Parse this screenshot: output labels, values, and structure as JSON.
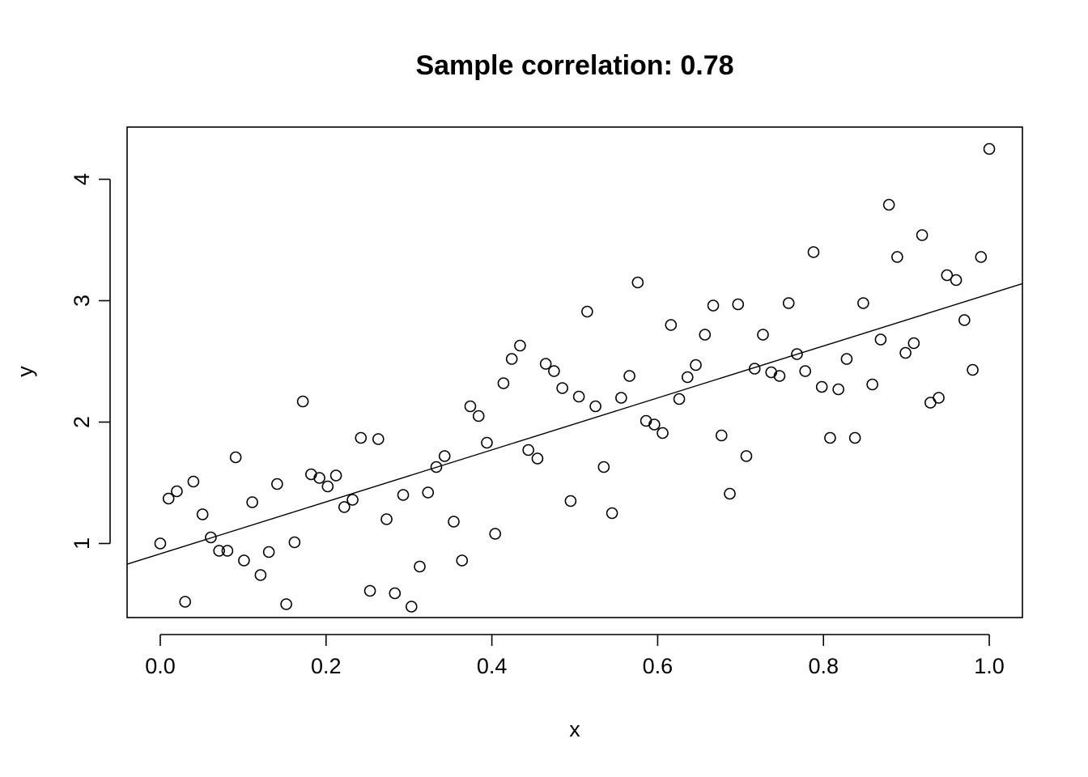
{
  "chart_data": {
    "type": "scatter",
    "title": "Sample correlation: 0.78",
    "xlabel": "x",
    "ylabel": "y",
    "xlim": [
      -0.04,
      1.04
    ],
    "ylim": [
      0.39,
      4.43
    ],
    "xticks": [
      0,
      0.2,
      0.4,
      0.6,
      0.8,
      1.0
    ],
    "xtick_labels": [
      "0.0",
      "0.2",
      "0.4",
      "0.6",
      "0.8",
      "1.0"
    ],
    "yticks": [
      1,
      2,
      3,
      4
    ],
    "ytick_labels": [
      "1",
      "2",
      "3",
      "4"
    ],
    "grid": false,
    "legend": "none",
    "marker": "open-circle",
    "fit_line": {
      "intercept": 0.915,
      "slope": 2.14
    },
    "points": [
      [
        0.0,
        1.0
      ],
      [
        0.01,
        1.37
      ],
      [
        0.02,
        1.43
      ],
      [
        0.03,
        0.52
      ],
      [
        0.04,
        1.51
      ],
      [
        0.051,
        1.24
      ],
      [
        0.061,
        1.05
      ],
      [
        0.071,
        0.94
      ],
      [
        0.081,
        0.94
      ],
      [
        0.091,
        1.71
      ],
      [
        0.101,
        0.86
      ],
      [
        0.111,
        1.34
      ],
      [
        0.121,
        0.74
      ],
      [
        0.131,
        0.93
      ],
      [
        0.141,
        1.49
      ],
      [
        0.152,
        0.5
      ],
      [
        0.162,
        1.01
      ],
      [
        0.172,
        2.17
      ],
      [
        0.182,
        1.57
      ],
      [
        0.192,
        1.54
      ],
      [
        0.202,
        1.47
      ],
      [
        0.212,
        1.56
      ],
      [
        0.222,
        1.3
      ],
      [
        0.232,
        1.36
      ],
      [
        0.242,
        1.87
      ],
      [
        0.253,
        0.61
      ],
      [
        0.263,
        1.86
      ],
      [
        0.273,
        1.2
      ],
      [
        0.283,
        0.59
      ],
      [
        0.293,
        1.4
      ],
      [
        0.303,
        0.48
      ],
      [
        0.313,
        0.81
      ],
      [
        0.323,
        1.42
      ],
      [
        0.333,
        1.63
      ],
      [
        0.343,
        1.72
      ],
      [
        0.354,
        1.18
      ],
      [
        0.364,
        0.86
      ],
      [
        0.374,
        2.13
      ],
      [
        0.384,
        2.05
      ],
      [
        0.394,
        1.83
      ],
      [
        0.404,
        1.08
      ],
      [
        0.414,
        2.32
      ],
      [
        0.424,
        2.52
      ],
      [
        0.434,
        2.63
      ],
      [
        0.444,
        1.77
      ],
      [
        0.455,
        1.7
      ],
      [
        0.465,
        2.48
      ],
      [
        0.475,
        2.42
      ],
      [
        0.485,
        2.28
      ],
      [
        0.495,
        1.35
      ],
      [
        0.505,
        2.21
      ],
      [
        0.515,
        2.91
      ],
      [
        0.525,
        2.13
      ],
      [
        0.535,
        1.63
      ],
      [
        0.545,
        1.25
      ],
      [
        0.556,
        2.2
      ],
      [
        0.566,
        2.38
      ],
      [
        0.576,
        3.15
      ],
      [
        0.586,
        2.01
      ],
      [
        0.596,
        1.98
      ],
      [
        0.606,
        1.91
      ],
      [
        0.616,
        2.8
      ],
      [
        0.626,
        2.19
      ],
      [
        0.636,
        2.37
      ],
      [
        0.646,
        2.47
      ],
      [
        0.657,
        2.72
      ],
      [
        0.667,
        2.96
      ],
      [
        0.677,
        1.89
      ],
      [
        0.687,
        1.41
      ],
      [
        0.697,
        2.97
      ],
      [
        0.707,
        1.72
      ],
      [
        0.717,
        2.44
      ],
      [
        0.727,
        2.72
      ],
      [
        0.737,
        2.41
      ],
      [
        0.747,
        2.38
      ],
      [
        0.758,
        2.98
      ],
      [
        0.768,
        2.56
      ],
      [
        0.778,
        2.42
      ],
      [
        0.788,
        3.4
      ],
      [
        0.798,
        2.29
      ],
      [
        0.808,
        1.87
      ],
      [
        0.818,
        2.27
      ],
      [
        0.828,
        2.52
      ],
      [
        0.838,
        1.87
      ],
      [
        0.848,
        2.98
      ],
      [
        0.859,
        2.31
      ],
      [
        0.869,
        2.68
      ],
      [
        0.879,
        3.79
      ],
      [
        0.889,
        3.36
      ],
      [
        0.899,
        2.57
      ],
      [
        0.909,
        2.65
      ],
      [
        0.919,
        3.54
      ],
      [
        0.929,
        2.16
      ],
      [
        0.939,
        2.2
      ],
      [
        0.949,
        3.21
      ],
      [
        0.96,
        3.17
      ],
      [
        0.97,
        2.84
      ],
      [
        0.98,
        2.43
      ],
      [
        0.99,
        3.36
      ],
      [
        1.0,
        4.25
      ]
    ]
  }
}
